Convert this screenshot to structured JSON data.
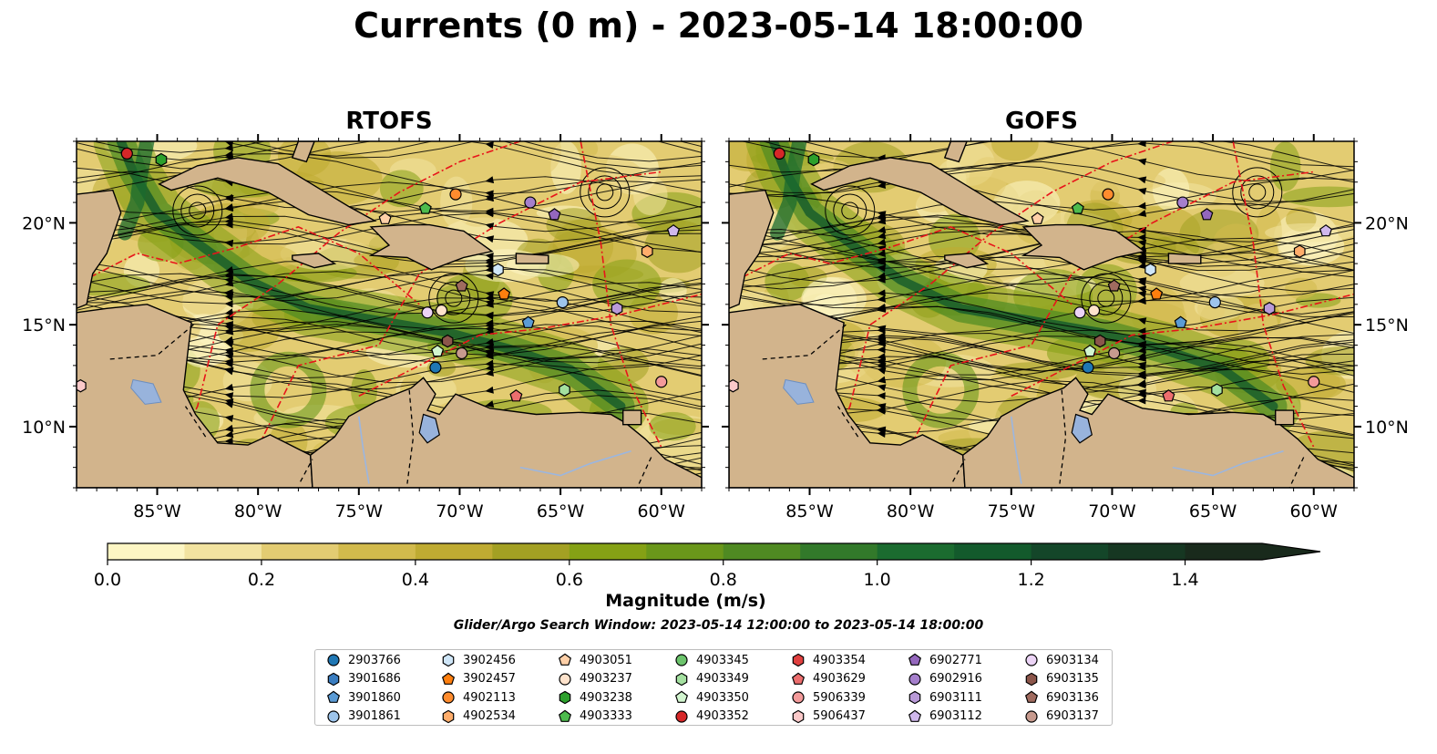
{
  "title": "Currents (0 m) - 2023-05-14 18:00:00",
  "panels": [
    {
      "title": "RTOFS",
      "variant": "rtofs"
    },
    {
      "title": "GOFS",
      "variant": "gofs"
    }
  ],
  "axes": {
    "lon_range": [
      -89,
      -58
    ],
    "lat_range": [
      7,
      24
    ],
    "lon_ticks": [
      -85,
      -80,
      -75,
      -70,
      -65,
      -60
    ],
    "lon_labels": [
      "85°W",
      "80°W",
      "75°W",
      "70°W",
      "65°W",
      "60°W"
    ],
    "lat_ticks": [
      10,
      15,
      20
    ],
    "lat_labels": [
      "10°N",
      "15°N",
      "20°N"
    ]
  },
  "colorbar": {
    "label": "Magnitude (m/s)",
    "range": [
      0,
      1.5
    ],
    "ticks": [
      0.0,
      0.2,
      0.4,
      0.6,
      0.8,
      1.0,
      1.2,
      1.4
    ],
    "tick_labels": [
      "0.0",
      "0.2",
      "0.4",
      "0.6",
      "0.8",
      "1.0",
      "1.2",
      "1.4"
    ],
    "colors": [
      "#fdf6c4",
      "#f2e3a0",
      "#e3cc72",
      "#d2ba4c",
      "#bfab32",
      "#a3a023",
      "#85a115",
      "#6a971a",
      "#4f8a22",
      "#32792a",
      "#1b6b2f",
      "#135a2c",
      "#144629",
      "#163722",
      "#192a1c"
    ]
  },
  "search_window": "Glider/Argo Search Window: 2023-05-14 12:00:00 to 2023-05-14 18:00:00",
  "legend": {
    "columns": [
      [
        {
          "id": "2903766",
          "color": "#1f77b4",
          "shape": "circle"
        },
        {
          "id": "3901686",
          "color": "#3a7dc0",
          "shape": "hexagon"
        },
        {
          "id": "3901860",
          "color": "#5b9bd5",
          "shape": "pentagon"
        },
        {
          "id": "3901861",
          "color": "#9ec5ec",
          "shape": "circle"
        }
      ],
      [
        {
          "id": "3902456",
          "color": "#cfe6f8",
          "shape": "hexagon"
        },
        {
          "id": "3902457",
          "color": "#ff7f0e",
          "shape": "pentagon"
        },
        {
          "id": "4902113",
          "color": "#ff8c2e",
          "shape": "circle"
        },
        {
          "id": "4902534",
          "color": "#ffad6b",
          "shape": "hexagon"
        }
      ],
      [
        {
          "id": "4903051",
          "color": "#ffd0a8",
          "shape": "pentagon"
        },
        {
          "id": "4903237",
          "color": "#ffe3cc",
          "shape": "circle"
        },
        {
          "id": "4903238",
          "color": "#2ca02c",
          "shape": "hexagon"
        },
        {
          "id": "4903333",
          "color": "#4dbb4d",
          "shape": "pentagon"
        }
      ],
      [
        {
          "id": "4903345",
          "color": "#6cc46c",
          "shape": "circle"
        },
        {
          "id": "4903349",
          "color": "#a4e0a0",
          "shape": "hexagon"
        },
        {
          "id": "4903350",
          "color": "#d2f5cf",
          "shape": "pentagon"
        },
        {
          "id": "4903352",
          "color": "#d62728",
          "shape": "circle"
        }
      ],
      [
        {
          "id": "4903354",
          "color": "#e0403f",
          "shape": "hexagon"
        },
        {
          "id": "4903629",
          "color": "#ec6e6e",
          "shape": "pentagon"
        },
        {
          "id": "5906339",
          "color": "#f39a9a",
          "shape": "circle"
        },
        {
          "id": "5906437",
          "color": "#fbc9c9",
          "shape": "hexagon"
        }
      ],
      [
        {
          "id": "6902771",
          "color": "#9467bd",
          "shape": "pentagon"
        },
        {
          "id": "6902916",
          "color": "#a57fcc",
          "shape": "circle"
        },
        {
          "id": "6903111",
          "color": "#b99ad8",
          "shape": "hexagon"
        },
        {
          "id": "6903112",
          "color": "#d0b8ec",
          "shape": "pentagon"
        }
      ],
      [
        {
          "id": "6903134",
          "color": "#ecd4f6",
          "shape": "circle"
        },
        {
          "id": "6903135",
          "color": "#8c564b",
          "shape": "hexagon"
        },
        {
          "id": "6903136",
          "color": "#a06b5f",
          "shape": "pentagon"
        },
        {
          "id": "6903137",
          "color": "#c79a8e",
          "shape": "circle"
        }
      ]
    ]
  },
  "floats": [
    {
      "id": "4903352",
      "lon": -86.5,
      "lat": 23.4
    },
    {
      "id": "4903238",
      "lon": -84.8,
      "lat": 23.1
    },
    {
      "id": "4902113",
      "lon": -70.2,
      "lat": 21.4
    },
    {
      "id": "6902916",
      "lon": -66.5,
      "lat": 21.0
    },
    {
      "id": "6902771",
      "lon": -65.3,
      "lat": 20.4
    },
    {
      "id": "4903051",
      "lon": -73.7,
      "lat": 20.2
    },
    {
      "id": "4903333",
      "lon": -71.7,
      "lat": 20.7
    },
    {
      "id": "6903112",
      "lon": -59.4,
      "lat": 19.6
    },
    {
      "id": "4902534",
      "lon": -60.7,
      "lat": 18.6
    },
    {
      "id": "3902456",
      "lon": -68.1,
      "lat": 17.7
    },
    {
      "id": "3902457",
      "lon": -67.8,
      "lat": 16.5
    },
    {
      "id": "6903136",
      "lon": -69.9,
      "lat": 16.9
    },
    {
      "id": "3901861",
      "lon": -64.9,
      "lat": 16.1
    },
    {
      "id": "6903111",
      "lon": -62.2,
      "lat": 15.8
    },
    {
      "id": "6903134",
      "lon": -71.6,
      "lat": 15.6
    },
    {
      "id": "4903237",
      "lon": -70.9,
      "lat": 15.7
    },
    {
      "id": "3901860",
      "lon": -66.6,
      "lat": 15.1
    },
    {
      "id": "6903135",
      "lon": -70.6,
      "lat": 14.2
    },
    {
      "id": "4903350",
      "lon": -71.1,
      "lat": 13.7
    },
    {
      "id": "6903137",
      "lon": -69.9,
      "lat": 13.6
    },
    {
      "id": "2903766",
      "lon": -71.2,
      "lat": 12.9
    },
    {
      "id": "4903349",
      "lon": -64.8,
      "lat": 11.8
    },
    {
      "id": "4903629",
      "lon": -67.2,
      "lat": 11.5
    },
    {
      "id": "5906339",
      "lon": -60.0,
      "lat": 12.2
    },
    {
      "id": "5906437",
      "lon": -88.8,
      "lat": 12.0
    }
  ]
}
